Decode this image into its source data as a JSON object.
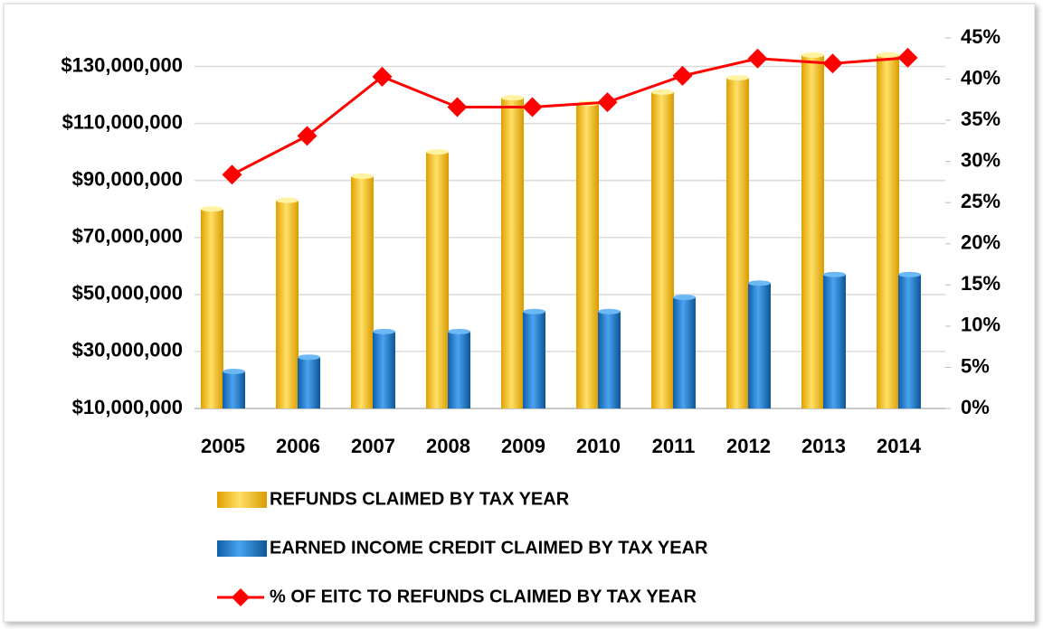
{
  "chart_data": {
    "type": "bar",
    "categories": [
      "2005",
      "2006",
      "2007",
      "2008",
      "2009",
      "2010",
      "2011",
      "2012",
      "2013",
      "2014"
    ],
    "series": [
      {
        "name": "REFUNDS CLAIMED BY TAX YEAR",
        "color": "#f5b800",
        "type": "bar",
        "values": [
          80000000,
          83000000,
          91500000,
          100000000,
          119000000,
          117000000,
          121000000,
          126000000,
          134000000,
          134000000
        ]
      },
      {
        "name": "EARNED INCOME CREDIT CLAIMED BY TAX YEAR",
        "color": "#1b74c8",
        "type": "bar",
        "values": [
          23000000,
          28000000,
          37000000,
          37000000,
          44000000,
          44000000,
          49000000,
          54000000,
          57000000,
          57000000
        ]
      },
      {
        "name": "% OF EITC TO REFUNDS CLAIMED BY TAX YEAR",
        "color": "#ff0000",
        "type": "line",
        "axis": "y2",
        "values": [
          28.4,
          33.1,
          40.3,
          36.6,
          36.6,
          37.2,
          40.4,
          42.5,
          41.9,
          42.6
        ]
      }
    ],
    "ylim": [
      10000000,
      140000000
    ],
    "yticks": [
      {
        "value": 10000000,
        "label": "$10,000,000"
      },
      {
        "value": 30000000,
        "label": "$30,000,000"
      },
      {
        "value": 50000000,
        "label": "$50,000,000"
      },
      {
        "value": 70000000,
        "label": "$70,000,000"
      },
      {
        "value": 90000000,
        "label": "$90,000,000"
      },
      {
        "value": 110000000,
        "label": "$110,000,000"
      },
      {
        "value": 130000000,
        "label": "$130,000,000"
      }
    ],
    "y2lim": [
      0,
      45
    ],
    "y2ticks": [
      {
        "value": 0,
        "label": "0%"
      },
      {
        "value": 5,
        "label": "5%"
      },
      {
        "value": 10,
        "label": "10%"
      },
      {
        "value": 15,
        "label": "15%"
      },
      {
        "value": 20,
        "label": "20%"
      },
      {
        "value": 25,
        "label": "25%"
      },
      {
        "value": 30,
        "label": "30%"
      },
      {
        "value": 35,
        "label": "35%"
      },
      {
        "value": 40,
        "label": "40%"
      },
      {
        "value": 45,
        "label": "45%"
      }
    ],
    "grid": true,
    "legend": "bottom"
  }
}
